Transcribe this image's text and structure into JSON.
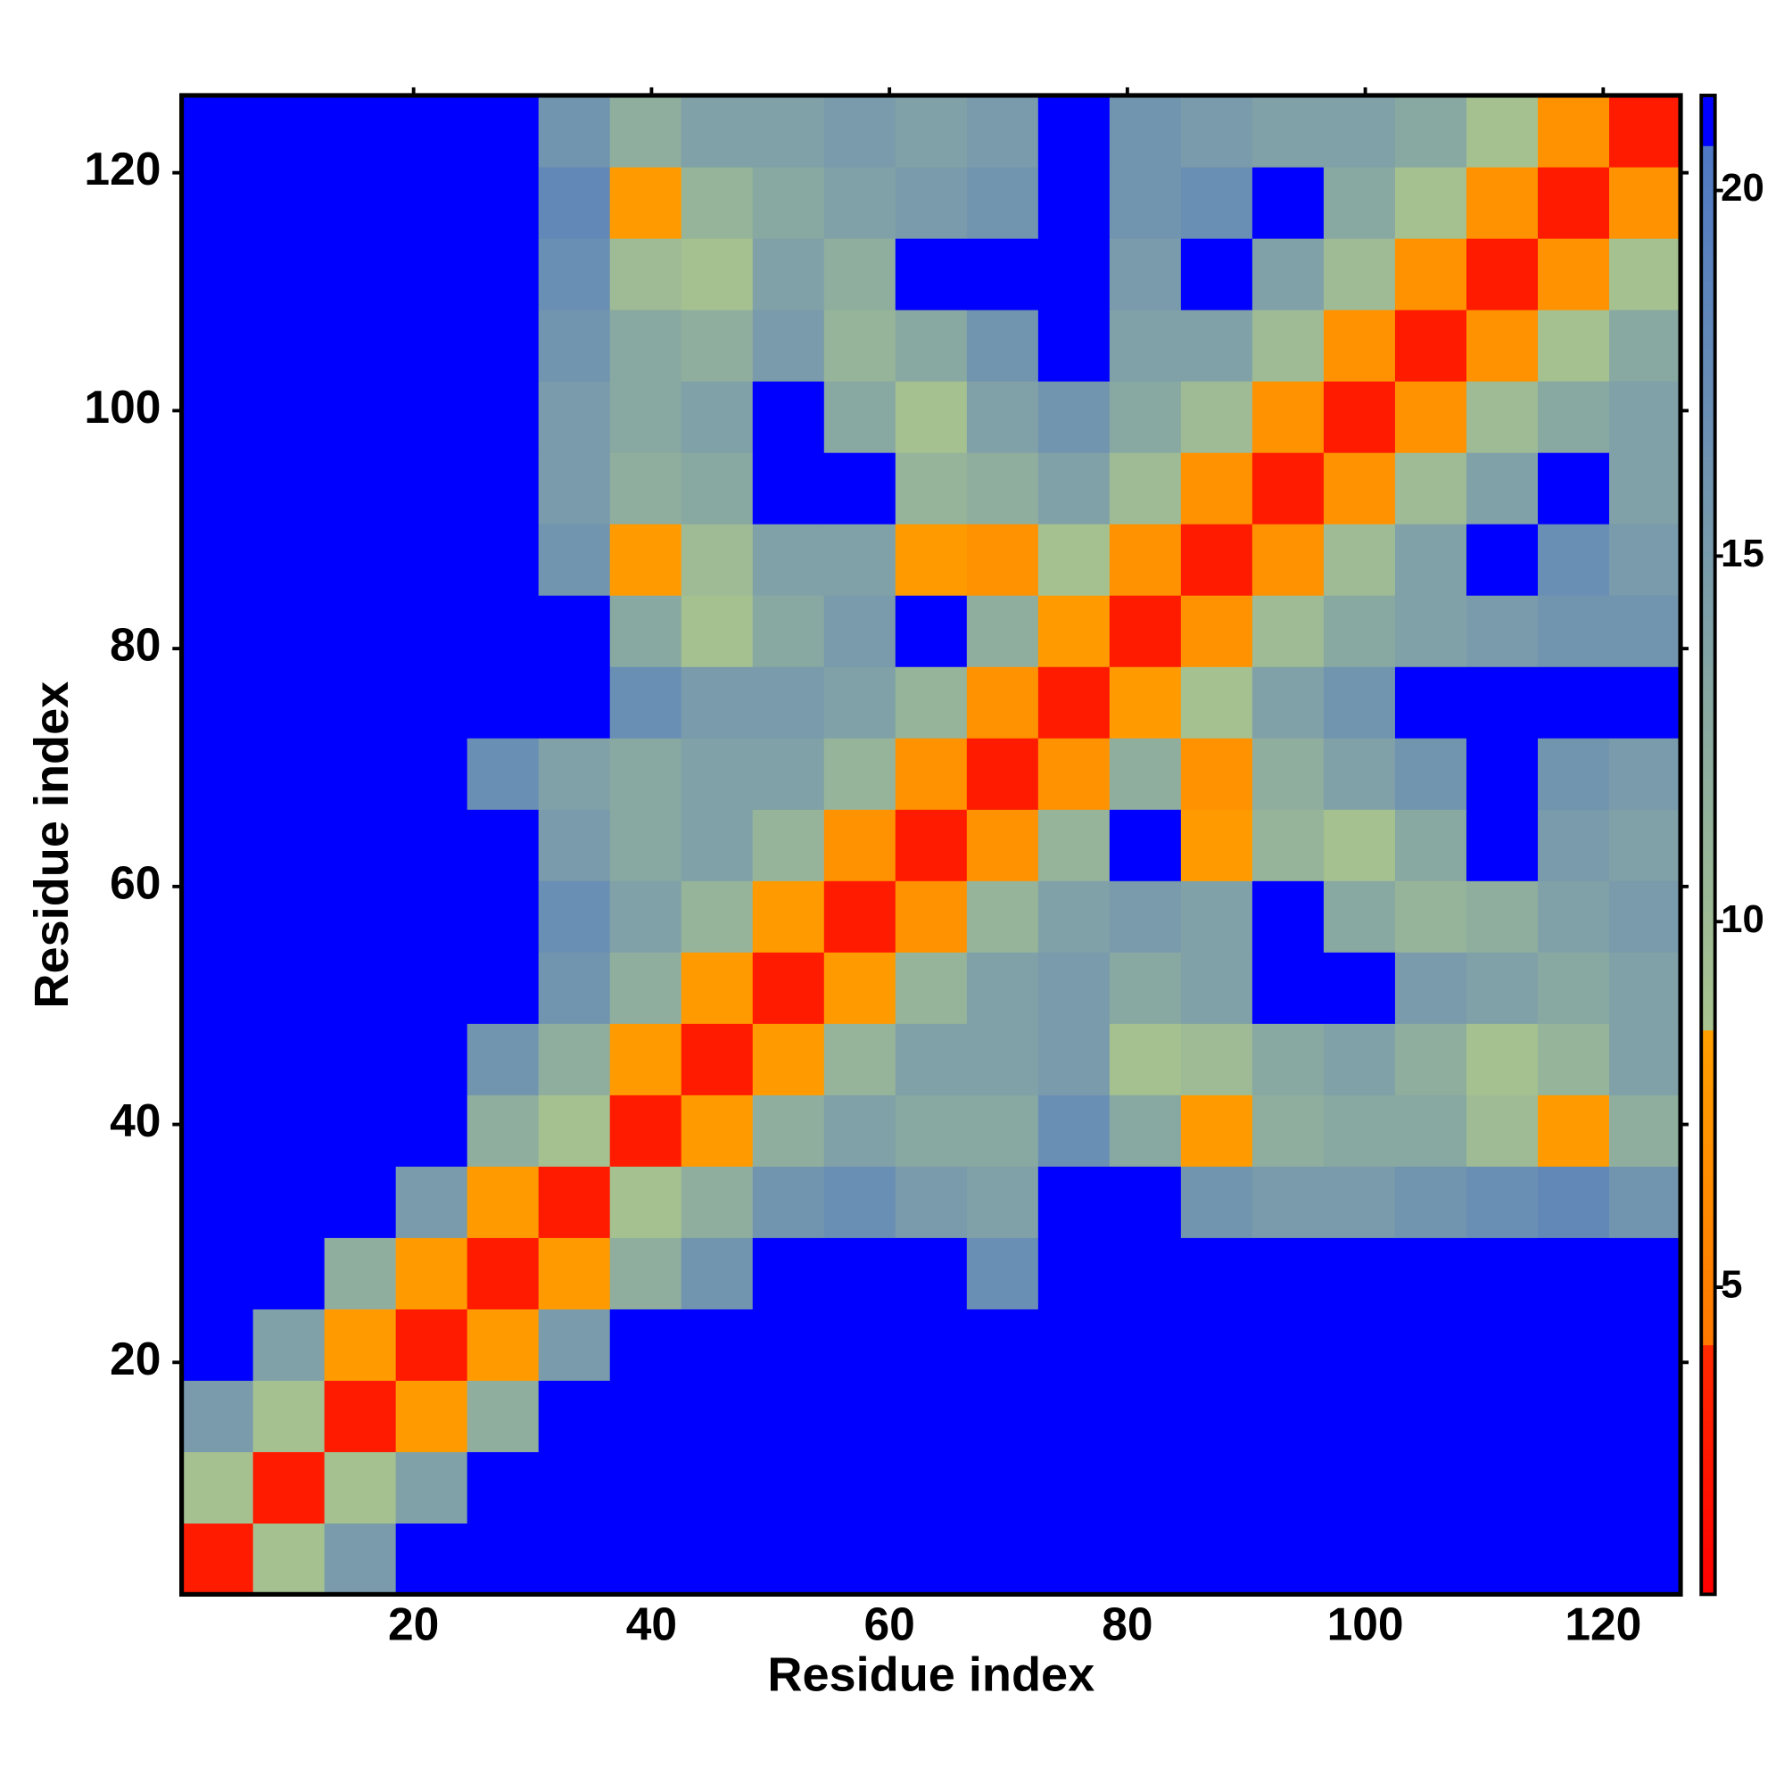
{
  "chart_data": {
    "type": "heatmap",
    "xlabel": "Residue index",
    "ylabel": "Residue index",
    "xbins": [
      0.5,
      6.5,
      12.5,
      18.5,
      24.5,
      30.5,
      36.5,
      42.5,
      48.5,
      54.5,
      60.5,
      66.5,
      72.5,
      78.5,
      84.5,
      90.5,
      96.5,
      102.5,
      108.5,
      114.5,
      120.5,
      126.5
    ],
    "ybins": [
      0.5,
      6.5,
      12.5,
      18.5,
      24.5,
      30.5,
      36.5,
      42.5,
      48.5,
      54.5,
      60.5,
      66.5,
      72.5,
      78.5,
      84.5,
      90.5,
      96.5,
      102.5,
      108.5,
      114.5,
      120.5,
      126.5
    ],
    "values": [
      [
        3,
        9,
        15,
        21.3,
        21.3,
        21.3,
        21.3,
        21.3,
        21.3,
        21.3,
        21.3,
        21.3,
        21.3,
        21.3,
        21.3,
        21.3,
        21.3,
        21.3,
        21.3,
        21.3,
        21.3
      ],
      [
        9,
        3,
        9,
        14,
        21.3,
        21.3,
        21.3,
        21.3,
        21.3,
        21.3,
        21.3,
        21.3,
        21.3,
        21.3,
        21.3,
        21.3,
        21.3,
        21.3,
        21.3,
        21.3,
        21.3
      ],
      [
        15,
        9,
        3,
        8,
        12,
        21.3,
        21.3,
        21.3,
        21.3,
        21.3,
        21.3,
        21.3,
        21.3,
        21.3,
        21.3,
        21.3,
        21.3,
        21.3,
        21.3,
        21.3,
        21.3
      ],
      [
        21.3,
        14,
        8,
        3,
        8,
        15,
        21.3,
        21.3,
        21.3,
        21.3,
        21.3,
        21.3,
        21.3,
        21.3,
        21.3,
        21.3,
        21.3,
        21.3,
        21.3,
        21.3,
        21.3
      ],
      [
        21.3,
        21.3,
        12,
        8,
        3,
        8,
        12,
        16,
        21.3,
        21.3,
        21.3,
        17,
        21.3,
        21.3,
        21.3,
        21.3,
        21.3,
        21.3,
        21.3,
        21.3,
        21.3
      ],
      [
        21.3,
        21.3,
        21.3,
        15,
        8,
        3,
        9,
        12,
        16,
        17,
        15,
        14,
        21.3,
        21.3,
        16,
        15,
        15,
        16,
        17,
        18,
        16
      ],
      [
        21.3,
        21.3,
        21.3,
        21.3,
        12,
        9,
        3,
        8,
        12,
        14,
        13,
        13,
        17,
        13,
        8,
        12,
        13,
        13,
        10,
        8,
        12
      ],
      [
        21.3,
        21.3,
        21.3,
        21.3,
        16,
        12,
        8,
        3,
        8,
        11,
        14,
        14,
        15,
        9,
        10,
        13,
        14,
        12,
        9,
        11,
        14
      ],
      [
        21.3,
        21.3,
        21.3,
        21.3,
        21.3,
        16,
        12,
        8,
        3,
        8,
        11,
        14,
        15,
        13,
        14,
        21.3,
        21.3,
        15,
        14,
        13,
        14
      ],
      [
        21.3,
        21.3,
        21.3,
        21.3,
        21.3,
        17,
        14,
        11,
        8,
        3,
        7,
        11,
        14,
        15,
        14,
        21.3,
        13,
        11,
        12,
        14,
        15
      ],
      [
        21.3,
        21.3,
        21.3,
        21.3,
        21.3,
        15,
        13,
        14,
        11,
        7,
        3,
        7,
        11,
        21.3,
        8,
        11,
        9,
        13,
        21.3,
        15,
        14
      ],
      [
        21.3,
        21.3,
        21.3,
        21.3,
        17,
        14,
        13,
        14,
        14,
        11,
        7,
        3,
        7,
        12,
        7,
        12,
        14,
        16,
        21.3,
        16,
        15
      ],
      [
        21.3,
        21.3,
        21.3,
        21.3,
        21.3,
        21.3,
        17,
        15,
        15,
        14,
        11,
        7,
        3,
        8,
        9,
        14,
        16,
        21.3,
        21.3,
        21.3,
        21.3
      ],
      [
        21.3,
        21.3,
        21.3,
        21.3,
        21.3,
        21.3,
        13,
        9,
        13,
        15,
        21.3,
        12,
        8,
        3,
        7,
        10,
        13,
        14,
        15,
        16,
        16
      ],
      [
        21.3,
        21.3,
        21.3,
        21.3,
        21.3,
        16,
        8,
        10,
        14,
        14,
        8,
        7,
        9,
        7,
        3,
        7,
        10,
        14,
        21.3,
        17,
        15
      ],
      [
        21.3,
        21.3,
        21.3,
        21.3,
        21.3,
        15,
        12,
        13,
        21.3,
        21.3,
        11,
        12,
        14,
        10,
        7,
        3,
        7,
        10,
        14,
        21.3,
        14
      ],
      [
        21.3,
        21.3,
        21.3,
        21.3,
        21.3,
        15,
        13,
        14,
        21.3,
        13,
        9,
        14,
        16,
        13,
        10,
        7,
        3,
        7,
        10,
        13,
        14
      ],
      [
        21.3,
        21.3,
        21.3,
        21.3,
        21.3,
        16,
        13,
        12,
        15,
        11,
        13,
        16,
        21.3,
        14,
        14,
        10,
        7,
        3,
        7,
        9,
        13
      ],
      [
        21.3,
        21.3,
        21.3,
        21.3,
        21.3,
        17,
        10,
        9,
        14,
        12,
        21.3,
        21.3,
        21.3,
        15,
        21.3,
        14,
        10,
        7,
        3,
        7,
        9
      ],
      [
        21.3,
        21.3,
        21.3,
        21.3,
        21.3,
        18,
        8,
        11,
        13,
        14,
        15,
        16,
        21.3,
        16,
        17,
        21.3,
        13,
        9,
        7,
        3,
        7
      ],
      [
        21.3,
        21.3,
        21.3,
        21.3,
        21.3,
        16,
        12,
        14,
        14,
        15,
        14,
        15,
        21.3,
        16,
        15,
        14,
        14,
        13,
        9,
        7,
        3
      ]
    ],
    "xlim": [
      0.5,
      126.5
    ],
    "ylim": [
      0.5,
      126.5
    ],
    "xticks": [
      20,
      40,
      60,
      80,
      100,
      120
    ],
    "yticks": [
      20,
      40,
      60,
      80,
      100,
      120
    ],
    "zlim": [
      0.8,
      21.3
    ],
    "zticks": [
      5,
      10,
      15,
      20
    ],
    "colorscale": [
      {
        "value": 0.8,
        "color": "#ff0000"
      },
      {
        "value": 4.2,
        "color": "#ff2a00"
      },
      {
        "value": 4.2,
        "color": "#ff7800"
      },
      {
        "value": 8.5,
        "color": "#ffa000"
      },
      {
        "value": 8.5,
        "color": "#a9c48e"
      },
      {
        "value": 20.6,
        "color": "#4f78c4"
      },
      {
        "value": 20.6,
        "color": "#0000ff"
      },
      {
        "value": 21.3,
        "color": "#0000ff"
      }
    ]
  }
}
